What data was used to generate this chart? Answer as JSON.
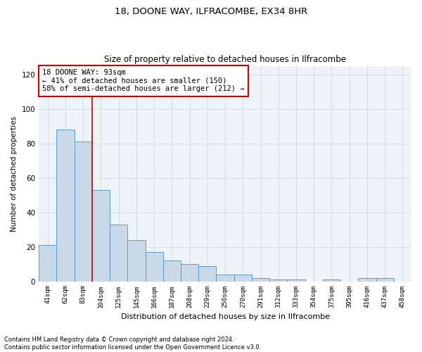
{
  "title": "18, DOONE WAY, ILFRACOMBE, EX34 8HR",
  "subtitle": "Size of property relative to detached houses in Ilfracombe",
  "xlabel": "Distribution of detached houses by size in Ilfracombe",
  "ylabel": "Number of detached properties",
  "footer1": "Contains HM Land Registry data © Crown copyright and database right 2024.",
  "footer2": "Contains public sector information licensed under the Open Government Licence v3.0.",
  "categories": [
    "41sqm",
    "62sqm",
    "83sqm",
    "104sqm",
    "125sqm",
    "145sqm",
    "166sqm",
    "187sqm",
    "208sqm",
    "229sqm",
    "250sqm",
    "270sqm",
    "291sqm",
    "312sqm",
    "333sqm",
    "354sqm",
    "375sqm",
    "395sqm",
    "416sqm",
    "437sqm",
    "458sqm"
  ],
  "values": [
    21,
    88,
    81,
    53,
    33,
    24,
    17,
    12,
    10,
    9,
    4,
    4,
    2,
    1,
    1,
    0,
    1,
    0,
    2,
    2,
    0
  ],
  "bar_color": "#c9d9e8",
  "bar_edge_color": "#5b9bd5",
  "ylim": [
    0,
    125
  ],
  "yticks": [
    0,
    20,
    40,
    60,
    80,
    100,
    120
  ],
  "red_line_x": 2.52,
  "annotation_text": "18 DOONE WAY: 93sqm\n← 41% of detached houses are smaller (150)\n58% of semi-detached houses are larger (212) →",
  "annotation_box_color": "#ffffff",
  "annotation_box_edge": "#cc0000",
  "grid_color": "#d0dce8",
  "bg_color": "#eef3f8",
  "title_fontsize": 9.5,
  "subtitle_fontsize": 8.5
}
